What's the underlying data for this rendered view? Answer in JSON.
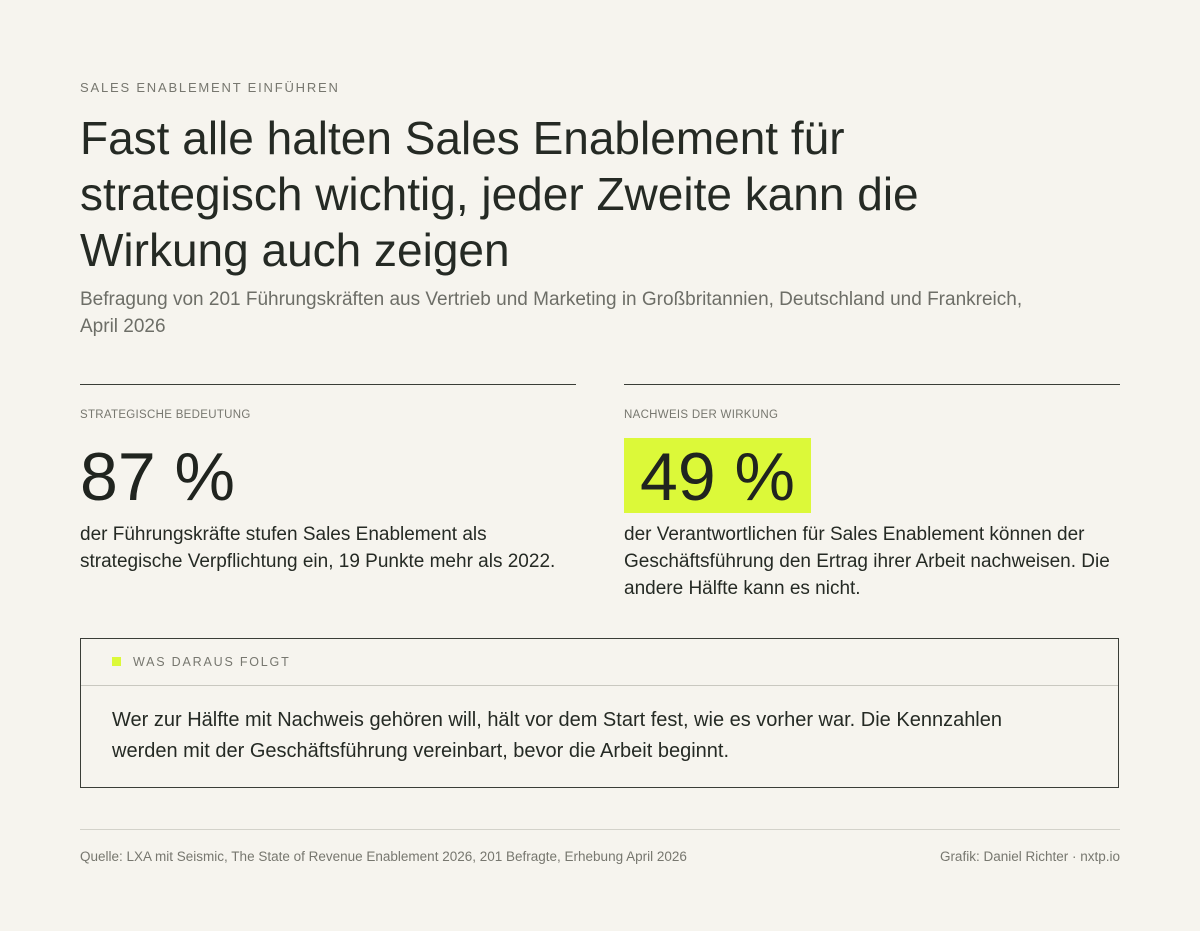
{
  "header": {
    "kicker": "SALES ENABLEMENT EINFÜHREN",
    "title": "Fast alle halten Sales Enablement für strategisch wichtig, jeder Zweite kann die Wirkung auch zeigen",
    "subtitle": "Befragung von 201 Führungskräften aus Vertrieb und Marketing in Großbritannien, Deutschland und Frankreich, April 2026"
  },
  "stats": [
    {
      "label": "STRATEGISCHE BEDEUTUNG",
      "value": "87 %",
      "text": "der Führungskräfte stufen Sales Enablement als strategische Verpflichtung ein, 19 Punkte mehr als 2022."
    },
    {
      "label": "NACHWEIS DER WIRKUNG",
      "value": "49 %",
      "text": "der Verantwortlichen für Sales Enablement können der Geschäftsführung den Ertrag ihrer Arbeit nachweisen. Die andere Hälfte kann es nicht.",
      "highlight_color": "#dcf939"
    }
  ],
  "takeaway": {
    "label": "WAS DARAUS FOLGT",
    "text": "Wer zur Hälfte mit Nachweis gehören will, hält vor dem Start fest, wie es vorher war. Die Kennzahlen werden mit der Geschäftsführung vereinbart, bevor die Arbeit beginnt.",
    "marker_color": "#dcf939"
  },
  "footer": {
    "source": "Quelle: LXA mit Seismic, The State of Revenue Enablement 2026, 201 Befragte, Erhebung April 2026",
    "credit": "Grafik: Daniel Richter · nxtp.io"
  },
  "colors": {
    "background": "#f6f4ee",
    "text": "#252a24",
    "muted": "#77776f",
    "accent": "#dcf939"
  }
}
